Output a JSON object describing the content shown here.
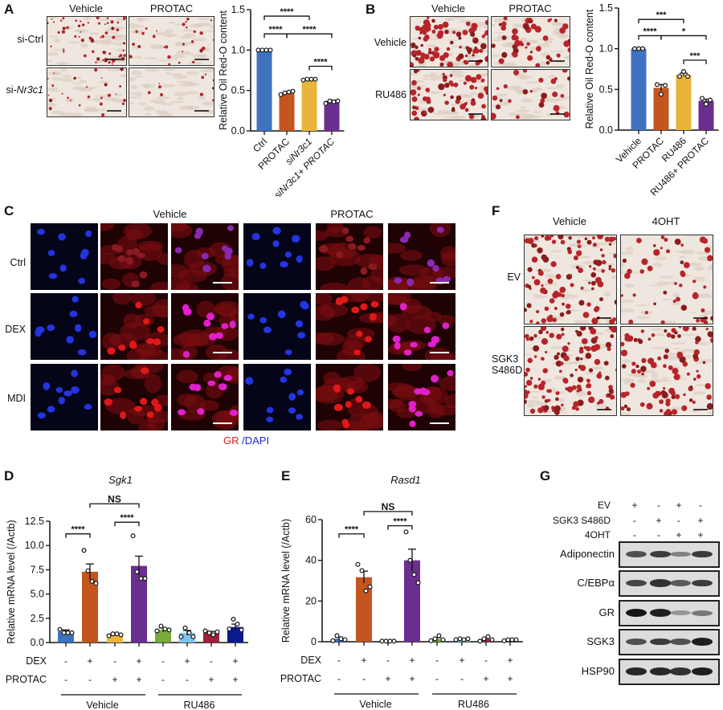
{
  "panels": {
    "A": {
      "label": "A",
      "col_headers": [
        "Vehicle",
        "PROTAC"
      ],
      "row_labels": [
        {
          "prefix": "si-Ctrl",
          "italic": ""
        },
        {
          "prefix": "si-",
          "italic": "Nr3c1"
        }
      ]
    },
    "B": {
      "label": "B",
      "col_headers": [
        "Vehicle",
        "PROTAC"
      ],
      "row_labels": [
        "Vehicle",
        "RU486"
      ]
    },
    "C": {
      "label": "C",
      "col_headers": [
        "Vehicle",
        "PROTAC"
      ],
      "row_labels": [
        "Ctrl",
        "DEX",
        "MDI"
      ],
      "legend": {
        "gr": "GR",
        "dapi": "/DAPI",
        "gr_color": "#e0201b",
        "dapi_color": "#1a2ad6"
      }
    },
    "D": {
      "label": "D"
    },
    "E": {
      "label": "E"
    },
    "F": {
      "label": "F",
      "col_headers": [
        "Vehicle",
        "4OHT"
      ],
      "row_labels": [
        "EV",
        "SGK3\nS486D"
      ]
    },
    "G": {
      "label": "G",
      "conditions": [
        {
          "name": "EV",
          "lanes": [
            "+",
            "-",
            "+",
            "-"
          ]
        },
        {
          "name": "SGK3 S486D",
          "lanes": [
            "-",
            "+",
            "-",
            "+"
          ]
        },
        {
          "name": "4OHT",
          "lanes": [
            "-",
            "-",
            "+",
            "+"
          ]
        }
      ],
      "bands": [
        "Adiponectin",
        "C/EBPα",
        "GR",
        "SGK3",
        "HSP90"
      ]
    }
  },
  "chart_data": [
    {
      "panel": "A",
      "type": "bar",
      "categories": [
        "Ctrl",
        "PROTAC",
        "siNr3c1",
        "siNr3c1+ PROTAC"
      ],
      "values": [
        1.0,
        0.47,
        0.64,
        0.37
      ],
      "errors": [
        0.0,
        0.01,
        0.01,
        0.01
      ],
      "points": [
        [
          1,
          1,
          1,
          1
        ],
        [
          0.45,
          0.47,
          0.48,
          0.49
        ],
        [
          0.63,
          0.64,
          0.64,
          0.64
        ],
        [
          0.34,
          0.37,
          0.36,
          0.37
        ]
      ],
      "colors": [
        "#3f73bf",
        "#c4551f",
        "#e8b43a",
        "#6a2f8e"
      ],
      "ylabel": "Relative Oil Red-O content",
      "ylim": [
        0,
        1.5
      ],
      "yticks": [
        "0.0",
        "0.5",
        "1.0",
        "1.5"
      ],
      "significance": [
        [
          0,
          2,
          "****",
          1.42
        ],
        [
          0,
          1,
          "****",
          1.2
        ],
        [
          1,
          3,
          "****",
          1.2
        ],
        [
          2,
          3,
          "****",
          0.8
        ]
      ]
    },
    {
      "panel": "B",
      "type": "bar",
      "categories": [
        "Vehicle",
        "PROTAC",
        "RU486",
        "RU486+ PROTAC"
      ],
      "values": [
        1.0,
        0.52,
        0.68,
        0.36
      ],
      "errors": [
        0.0,
        0.04,
        0.02,
        0.02
      ],
      "points": [
        [
          1,
          1,
          1
        ],
        [
          0.56,
          0.44,
          0.55
        ],
        [
          0.66,
          0.72,
          0.66
        ],
        [
          0.39,
          0.32,
          0.37
        ]
      ],
      "colors": [
        "#3f73bf",
        "#c4551f",
        "#e8b43a",
        "#6a2f8e"
      ],
      "ylabel": "Relative Oil Red-O content",
      "ylim": [
        0,
        1.5
      ],
      "yticks": [
        "0.0",
        "0.5",
        "1.0",
        "1.5"
      ],
      "significance": [
        [
          0,
          2,
          "***",
          1.36
        ],
        [
          0,
          1,
          "****",
          1.16
        ],
        [
          1,
          3,
          "*",
          1.16
        ],
        [
          2,
          3,
          "***",
          0.86
        ]
      ]
    },
    {
      "panel": "D",
      "type": "bar",
      "title": "Sgk1",
      "dex": [
        "-",
        "+",
        "-",
        "+",
        "-",
        "+",
        "-",
        "+"
      ],
      "protac": [
        "-",
        "-",
        "+",
        "+",
        "-",
        "-",
        "+",
        "+"
      ],
      "row_labels": [
        "DEX",
        "PROTAC"
      ],
      "groups": [
        "Vehicle",
        "RU486"
      ],
      "values": [
        1.1,
        7.3,
        0.8,
        7.9,
        1.3,
        1.0,
        1.0,
        1.6
      ],
      "errors": [
        0.2,
        0.8,
        0.1,
        1.0,
        0.2,
        0.25,
        0.15,
        0.3
      ],
      "points": [
        [
          1.35,
          1.0,
          1.0,
          1.0
        ],
        [
          9.5,
          7.4,
          6.3,
          6.1
        ],
        [
          0.7,
          0.9,
          0.9,
          0.8
        ],
        [
          11.0,
          7.3,
          6.6,
          6.6
        ],
        [
          1.2,
          1.7,
          1.4,
          1.3
        ],
        [
          0.6,
          1.5,
          1.0,
          0.6
        ],
        [
          1.2,
          1.0,
          0.8,
          1.1
        ],
        [
          1.4,
          2.4,
          1.9,
          1.3
        ]
      ],
      "colors": [
        "#3f73bf",
        "#c4551f",
        "#e8b43a",
        "#6a2f8e",
        "#7aa83a",
        "#7ec3ec",
        "#a0203a",
        "#0a1a8c"
      ],
      "ylabel": "Relative mRNA level (/Actb)",
      "ylim": [
        0,
        12.5
      ],
      "yticks": [
        "0.0",
        "2.5",
        "5.0",
        "7.5",
        "10.0",
        "12.5"
      ],
      "significance": [
        [
          0,
          1,
          "****",
          11.2
        ],
        [
          2,
          3,
          "****",
          12.4
        ],
        [
          1,
          3,
          "NS",
          14.3
        ]
      ]
    },
    {
      "panel": "E",
      "type": "bar",
      "title": "Rasd1",
      "dex": [
        "-",
        "+",
        "-",
        "+",
        "-",
        "+",
        "-",
        "+"
      ],
      "protac": [
        "-",
        "-",
        "+",
        "+",
        "-",
        "-",
        "+",
        "+"
      ],
      "row_labels": [
        "DEX",
        "PROTAC"
      ],
      "groups": [
        "Vehicle",
        "RU486"
      ],
      "values": [
        1.5,
        31.7,
        0.3,
        40.0,
        1.3,
        1.2,
        1.3,
        0.9
      ],
      "errors": [
        0.8,
        3.0,
        0.1,
        5.5,
        0.7,
        0.3,
        0.6,
        0.2
      ],
      "points": [
        [
          0.5,
          3,
          1.5,
          1
        ],
        [
          38,
          35,
          25,
          27
        ],
        [
          0.3,
          0.3,
          0.3,
          0.3
        ],
        [
          54,
          40,
          33,
          29
        ],
        [
          0.5,
          1.5,
          3,
          1
        ],
        [
          1,
          1.5,
          1,
          1.5
        ],
        [
          0.3,
          1.5,
          2.5,
          1
        ],
        [
          0.5,
          1,
          1,
          1
        ]
      ],
      "colors": [
        "#3f73bf",
        "#c4551f",
        "#e8b43a",
        "#6a2f8e",
        "#7aa83a",
        "#7ec3ec",
        "#a0203a",
        "#0a1a8c"
      ],
      "ylabel": "Relative mRNA level (/Actb)",
      "ylim": [
        0,
        60
      ],
      "yticks": [
        "0",
        "20",
        "40",
        "60"
      ],
      "significance": [
        [
          0,
          1,
          "****",
          53
        ],
        [
          2,
          3,
          "****",
          57
        ],
        [
          1,
          3,
          "NS",
          64
        ]
      ]
    }
  ]
}
